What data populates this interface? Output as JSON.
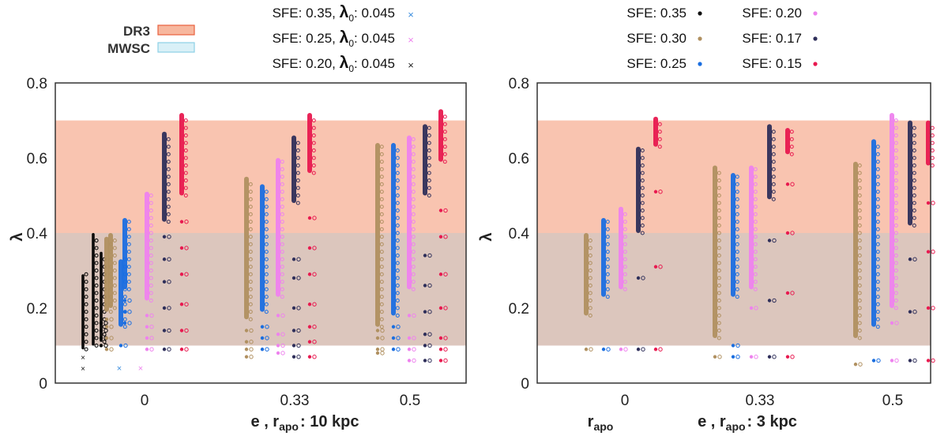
{
  "chart_data": [
    {
      "type": "scatter",
      "panel": "left",
      "xlabel": "e , r_apo : 10 kpc",
      "xlabel_parts": {
        "pre": "e , r",
        "sub": "apo",
        "post": ": 10 kpc"
      },
      "ylabel": "λ",
      "ylim": [
        0,
        0.8
      ],
      "yticks": [
        "0",
        "0.2",
        "0.4",
        "0.6",
        "0.8"
      ],
      "xticks": [
        "0",
        "0.33",
        "0.5"
      ],
      "bands": [
        {
          "name": "DR3",
          "range": [
            0.1,
            0.7
          ],
          "color": "#f9c4b0"
        },
        {
          "name": "MWSC",
          "range": [
            0.1,
            0.4
          ],
          "color": "#dcc6bd"
        }
      ],
      "legend": {
        "bands": [
          {
            "label": "DR3",
            "fill": "#f7b79e",
            "stroke": "#e8603c"
          },
          {
            "label": "MWSC",
            "fill": "#d9f0f7",
            "stroke": "#8dd0e6"
          }
        ],
        "series": [
          {
            "label": "SFE: 0.35, ",
            "lam": "λ",
            "sub": "0",
            "tail": ": 0.045",
            "color": "#3a8dde",
            "marker": "x"
          },
          {
            "label": "SFE: 0.25, ",
            "lam": "λ",
            "sub": "0",
            "tail": ": 0.045",
            "color": "#ee82ee",
            "marker": "x"
          },
          {
            "label": "SFE: 0.20, ",
            "lam": "λ",
            "sub": "0",
            "tail": ": 0.045",
            "color": "#222222",
            "marker": "x"
          }
        ]
      },
      "series": [
        {
          "name": "SFE: 0.20, λ0: 0.045",
          "color": "#000000",
          "groups": [
            {
              "e": "0",
              "min": 0.09,
              "max": 0.29,
              "outliers": [
                0.07,
                0.04
              ]
            },
            {
              "e": "0",
              "min": 0.1,
              "max": 0.4,
              "outliers": []
            },
            {
              "e": "0",
              "min": 0.11,
              "max": 0.35,
              "outliers": [
                0.1,
                0.12,
                0.14,
                0.16
              ]
            }
          ]
        },
        {
          "name": "SFE: 0.30",
          "color": "#b09060",
          "groups": [
            {
              "e": "0",
              "min": 0.19,
              "max": 0.39,
              "outliers": [
                0.09,
                0.12,
                0.15,
                0.17
              ]
            },
            {
              "e": "0",
              "min": 0.2,
              "max": 0.4,
              "outliers": []
            },
            {
              "e": "0.33",
              "min": 0.17,
              "max": 0.55,
              "outliers": [
                0.07,
                0.09,
                0.11,
                0.14
              ]
            },
            {
              "e": "0.5",
              "min": 0.15,
              "max": 0.64,
              "outliers": [
                0.08,
                0.09,
                0.12,
                0.14
              ]
            }
          ]
        },
        {
          "name": "SFE: 0.25",
          "color": "#1a6ee0",
          "groups": [
            {
              "e": "0",
              "min": 0.15,
              "max": 0.33,
              "outliers": [
                0.1
              ]
            },
            {
              "e": "0",
              "min": 0.25,
              "max": 0.44,
              "outliers": [
                0.16,
                0.19,
                0.22
              ]
            },
            {
              "e": "0.33",
              "min": 0.19,
              "max": 0.53,
              "outliers": [
                0.09,
                0.12,
                0.15
              ]
            },
            {
              "e": "0.5",
              "min": 0.18,
              "max": 0.64,
              "outliers": [
                0.09,
                0.12,
                0.15
              ]
            }
          ]
        },
        {
          "name": "SFE: 0.20",
          "color": "#ee82ee",
          "groups": [
            {
              "e": "0",
              "min": 0.22,
              "max": 0.51,
              "outliers": [
                0.09,
                0.12,
                0.15,
                0.18
              ]
            },
            {
              "e": "0.33",
              "min": 0.23,
              "max": 0.6,
              "outliers": [
                0.08,
                0.1,
                0.13,
                0.18
              ]
            },
            {
              "e": "0.5",
              "min": 0.25,
              "max": 0.66,
              "outliers": [
                0.06,
                0.09,
                0.12,
                0.18
              ]
            }
          ]
        },
        {
          "name": "SFE: 0.17",
          "color": "#2f2f5a",
          "groups": [
            {
              "e": "0",
              "min": 0.43,
              "max": 0.67,
              "outliers": [
                0.09,
                0.14,
                0.2,
                0.27,
                0.33,
                0.39
              ]
            },
            {
              "e": "0.33",
              "min": 0.48,
              "max": 0.66,
              "outliers": [
                0.07,
                0.1,
                0.14,
                0.2,
                0.28,
                0.33
              ]
            },
            {
              "e": "0.5",
              "min": 0.5,
              "max": 0.69,
              "outliers": [
                0.06,
                0.1,
                0.13,
                0.19,
                0.26,
                0.34
              ]
            }
          ]
        },
        {
          "name": "SFE: 0.15",
          "color": "#e8194f",
          "groups": [
            {
              "e": "0",
              "min": 0.5,
              "max": 0.72,
              "outliers": [
                0.09,
                0.14,
                0.21,
                0.29,
                0.36,
                0.43
              ]
            },
            {
              "e": "0.33",
              "min": 0.56,
              "max": 0.72,
              "outliers": [
                0.07,
                0.11,
                0.15,
                0.21,
                0.29,
                0.36,
                0.44
              ]
            },
            {
              "e": "0.5",
              "min": 0.59,
              "max": 0.73,
              "outliers": [
                0.06,
                0.09,
                0.12,
                0.2,
                0.29,
                0.39,
                0.46
              ]
            }
          ]
        }
      ]
    },
    {
      "type": "scatter",
      "panel": "right",
      "xlabel": "e , r_apo : 3 kpc",
      "xlabel_parts": {
        "pre": "e , r",
        "sub": "apo",
        "post": ": 3 kpc"
      },
      "extra_label": {
        "pre": "r",
        "sub": "apo"
      },
      "ylabel": "λ",
      "ylim": [
        0,
        0.8
      ],
      "yticks": [
        "0",
        "0.2",
        "0.4",
        "0.6",
        "0.8"
      ],
      "xticks": [
        "0",
        "0.33",
        "0.5"
      ],
      "bands": [
        {
          "name": "DR3",
          "range": [
            0.1,
            0.7
          ],
          "color": "#f9c4b0"
        },
        {
          "name": "MWSC",
          "range": [
            0.1,
            0.4
          ],
          "color": "#dcc6bd"
        }
      ],
      "legend": {
        "series": [
          {
            "label": "SFE: 0.35",
            "color": "#111111"
          },
          {
            "label": "SFE: 0.30",
            "color": "#b09060"
          },
          {
            "label": "SFE: 0.25",
            "color": "#1a6ee0"
          },
          {
            "label": "SFE: 0.20",
            "color": "#ee82ee"
          },
          {
            "label": "SFE: 0.17",
            "color": "#2f2f5a"
          },
          {
            "label": "SFE: 0.15",
            "color": "#e8194f"
          }
        ]
      },
      "series": [
        {
          "name": "SFE: 0.30",
          "color": "#b09060",
          "groups": [
            {
              "e": "0",
              "min": 0.18,
              "max": 0.4,
              "outliers": [
                0.09
              ]
            },
            {
              "e": "0.33",
              "min": 0.12,
              "max": 0.58,
              "outliers": [
                0.07
              ]
            },
            {
              "e": "0.5",
              "min": 0.12,
              "max": 0.59,
              "outliers": [
                0.05
              ]
            }
          ]
        },
        {
          "name": "SFE: 0.25",
          "color": "#1a6ee0",
          "groups": [
            {
              "e": "0",
              "min": 0.23,
              "max": 0.44,
              "outliers": [
                0.09
              ]
            },
            {
              "e": "0.33",
              "min": 0.23,
              "max": 0.56,
              "outliers": [
                0.07,
                0.1
              ]
            },
            {
              "e": "0.5",
              "min": 0.15,
              "max": 0.65,
              "outliers": [
                0.06
              ]
            }
          ]
        },
        {
          "name": "SFE: 0.20",
          "color": "#ee82ee",
          "groups": [
            {
              "e": "0",
              "min": 0.25,
              "max": 0.47,
              "outliers": [
                0.09
              ]
            },
            {
              "e": "0.33",
              "min": 0.25,
              "max": 0.58,
              "outliers": [
                0.07,
                0.2
              ]
            },
            {
              "e": "0.5",
              "min": 0.2,
              "max": 0.72,
              "outliers": [
                0.06,
                0.16
              ]
            }
          ]
        },
        {
          "name": "SFE: 0.17",
          "color": "#2f2f5a",
          "groups": [
            {
              "e": "0",
              "min": 0.4,
              "max": 0.63,
              "outliers": [
                0.09,
                0.28
              ]
            },
            {
              "e": "0.33",
              "min": 0.49,
              "max": 0.69,
              "outliers": [
                0.07,
                0.22,
                0.38
              ]
            },
            {
              "e": "0.5",
              "min": 0.42,
              "max": 0.7,
              "outliers": [
                0.06,
                0.19,
                0.33
              ]
            }
          ]
        },
        {
          "name": "SFE: 0.15",
          "color": "#e8194f",
          "groups": [
            {
              "e": "0",
              "min": 0.63,
              "max": 0.71,
              "outliers": [
                0.09,
                0.31,
                0.51
              ]
            },
            {
              "e": "0.33",
              "min": 0.61,
              "max": 0.68,
              "outliers": [
                0.07,
                0.24,
                0.4,
                0.53
              ]
            },
            {
              "e": "0.5",
              "min": 0.58,
              "max": 0.7,
              "outliers": [
                0.06,
                0.2,
                0.35,
                0.48
              ]
            }
          ]
        }
      ]
    }
  ]
}
